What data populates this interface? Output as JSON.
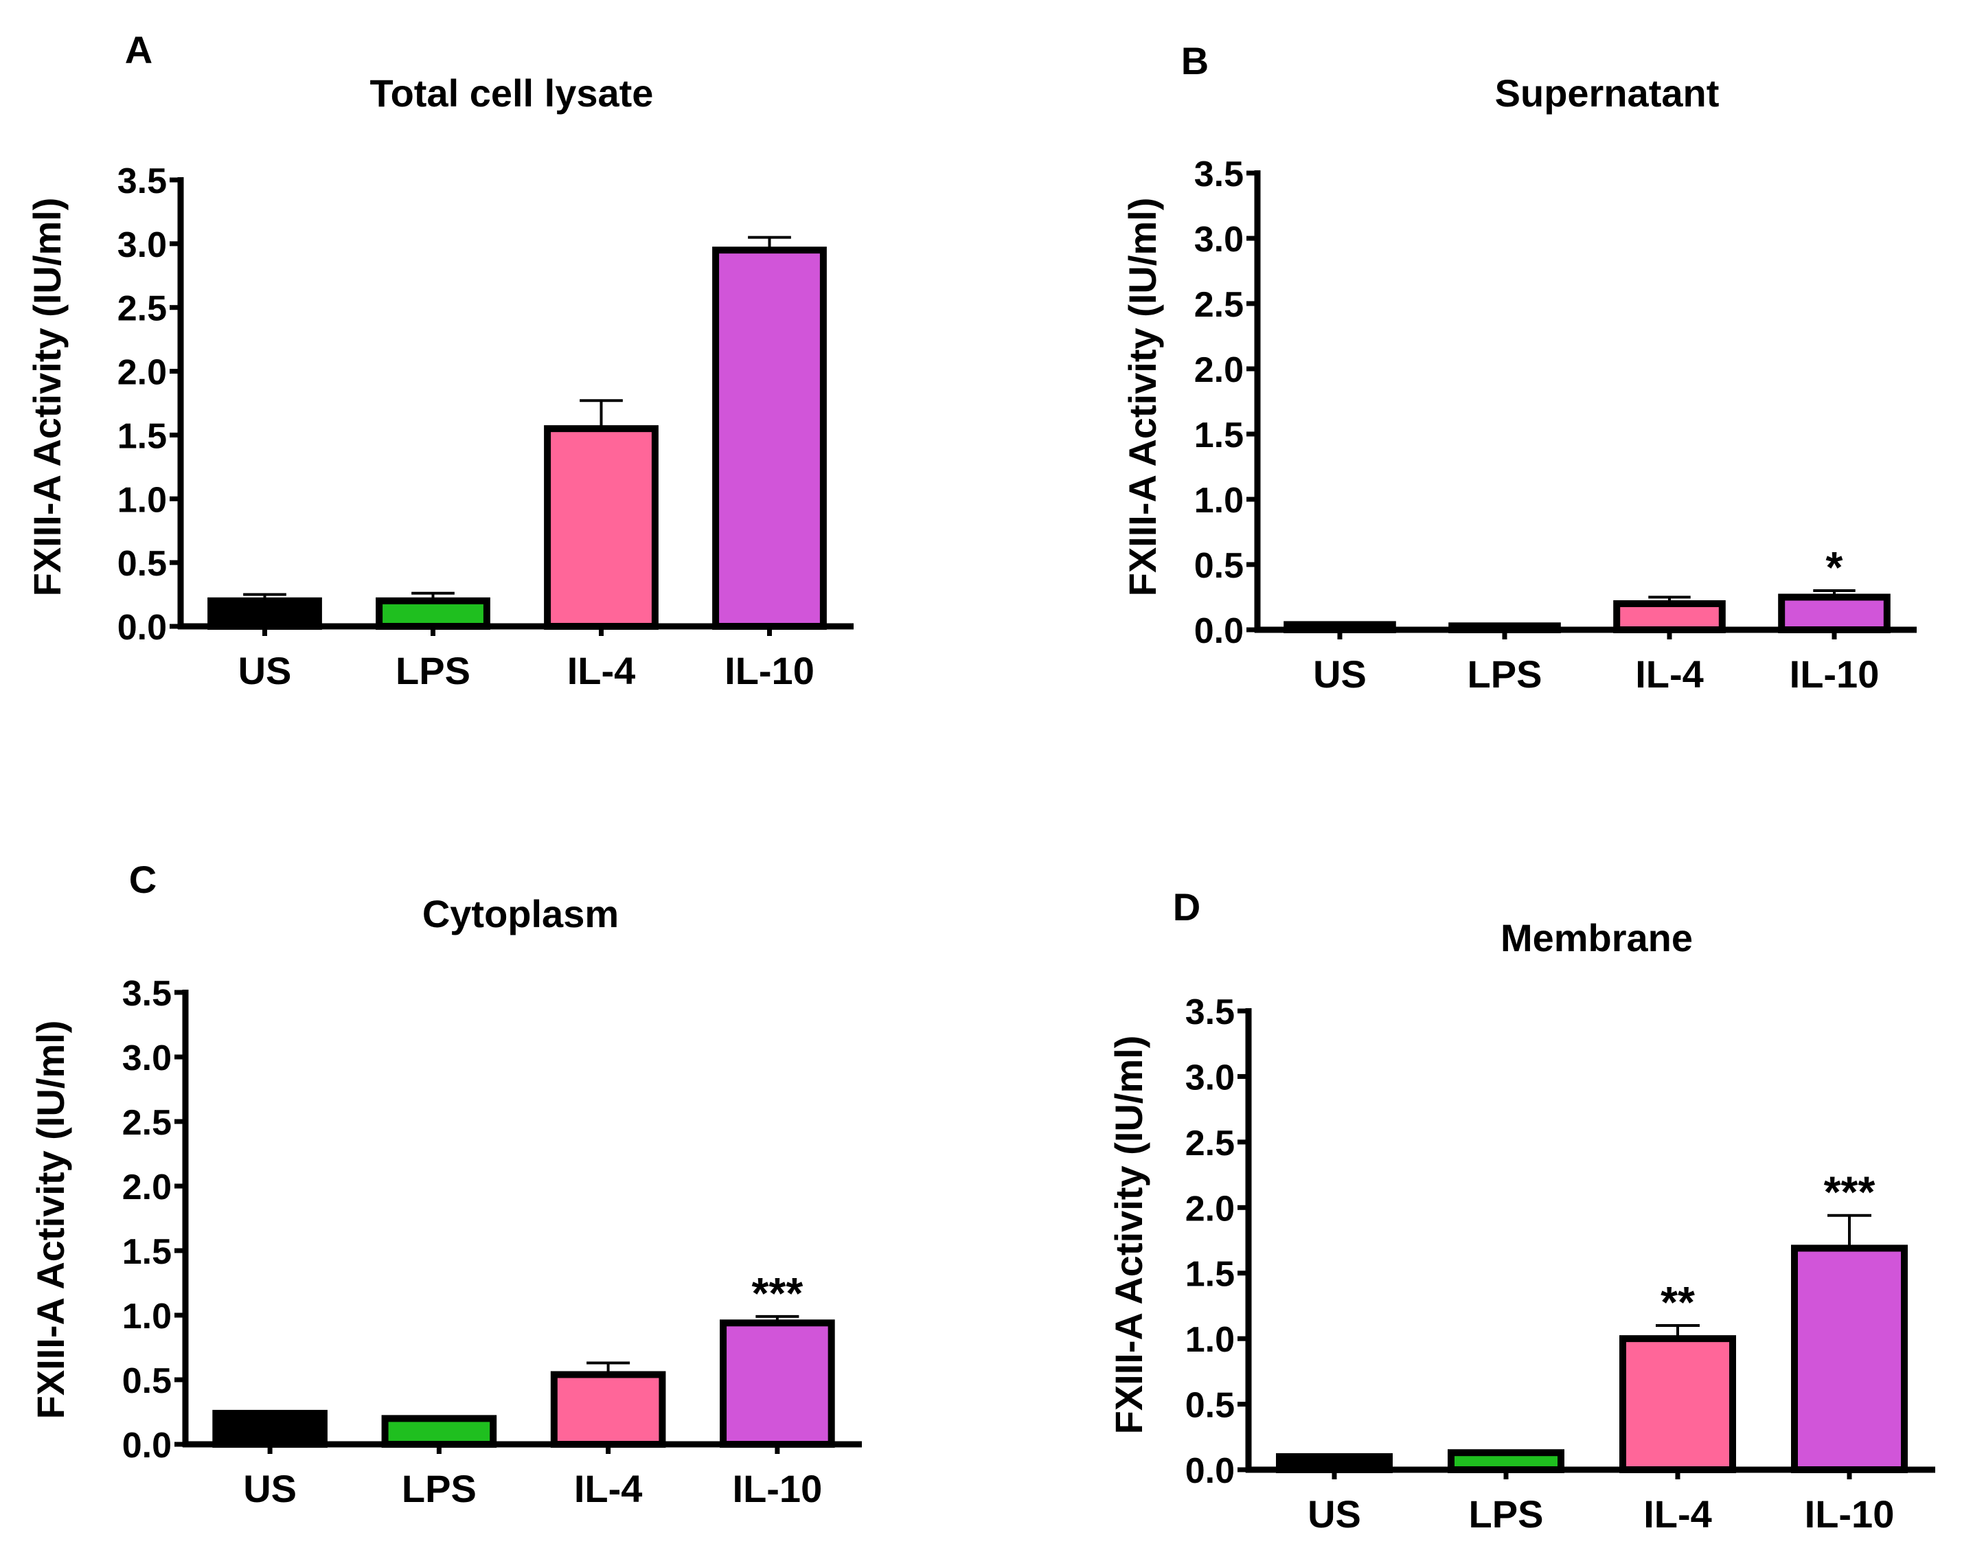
{
  "figure": {
    "colors": {
      "US": "#000000",
      "LPS": "#1fbf1f",
      "IL-4": "#ff6699",
      "IL-10": "#d155d9",
      "axis": "#000000"
    }
  },
  "chart_data": [
    {
      "type": "bar",
      "panel_label": "A",
      "title": "Total cell lysate",
      "ylabel": "FXIII-A Activity (IU/ml)",
      "xlabel": "",
      "ylim": [
        0,
        3.5
      ],
      "yticks": [
        "0.0",
        "0.5",
        "1.0",
        "1.5",
        "2.0",
        "2.5",
        "3.0",
        "3.5"
      ],
      "categories": [
        "US",
        "LPS",
        "IL-4",
        "IL-10"
      ],
      "values": [
        0.2,
        0.2,
        1.55,
        2.95
      ],
      "errors": [
        0.05,
        0.06,
        0.22,
        0.1
      ],
      "significance": [
        "",
        "",
        "",
        ""
      ]
    },
    {
      "type": "bar",
      "panel_label": "B",
      "title": "Supernatant",
      "ylabel": "FXIII-A Activity (IU/ml)",
      "xlabel": "",
      "ylim": [
        0,
        3.5
      ],
      "yticks": [
        "0.0",
        "0.5",
        "1.0",
        "1.5",
        "2.0",
        "2.5",
        "3.0",
        "3.5"
      ],
      "categories": [
        "US",
        "LPS",
        "IL-4",
        "IL-10"
      ],
      "values": [
        0.04,
        0.03,
        0.2,
        0.25
      ],
      "errors": [
        0.01,
        0.01,
        0.05,
        0.05
      ],
      "significance": [
        "",
        "",
        "",
        "*"
      ]
    },
    {
      "type": "bar",
      "panel_label": "C",
      "title": "Cytoplasm",
      "ylabel": "FXIII-A Activity (IU/ml)",
      "xlabel": "",
      "ylim": [
        0,
        3.5
      ],
      "yticks": [
        "0.0",
        "0.5",
        "1.0",
        "1.5",
        "2.0",
        "2.5",
        "3.0",
        "3.5"
      ],
      "categories": [
        "US",
        "LPS",
        "IL-4",
        "IL-10"
      ],
      "values": [
        0.24,
        0.2,
        0.54,
        0.94
      ],
      "errors": [
        0.0,
        0.0,
        0.09,
        0.05
      ],
      "significance": [
        "",
        "",
        "",
        "***"
      ]
    },
    {
      "type": "bar",
      "panel_label": "D",
      "title": "Membrane",
      "ylabel": "FXIII-A Activity (IU/ml)",
      "xlabel": "",
      "ylim": [
        0,
        3.5
      ],
      "yticks": [
        "0.0",
        "0.5",
        "1.0",
        "1.5",
        "2.0",
        "2.5",
        "3.0",
        "3.5"
      ],
      "categories": [
        "US",
        "LPS",
        "IL-4",
        "IL-10"
      ],
      "values": [
        0.1,
        0.13,
        1.0,
        1.69
      ],
      "errors": [
        0.0,
        0.0,
        0.1,
        0.25
      ],
      "significance": [
        "",
        "",
        "**",
        "***"
      ]
    }
  ]
}
